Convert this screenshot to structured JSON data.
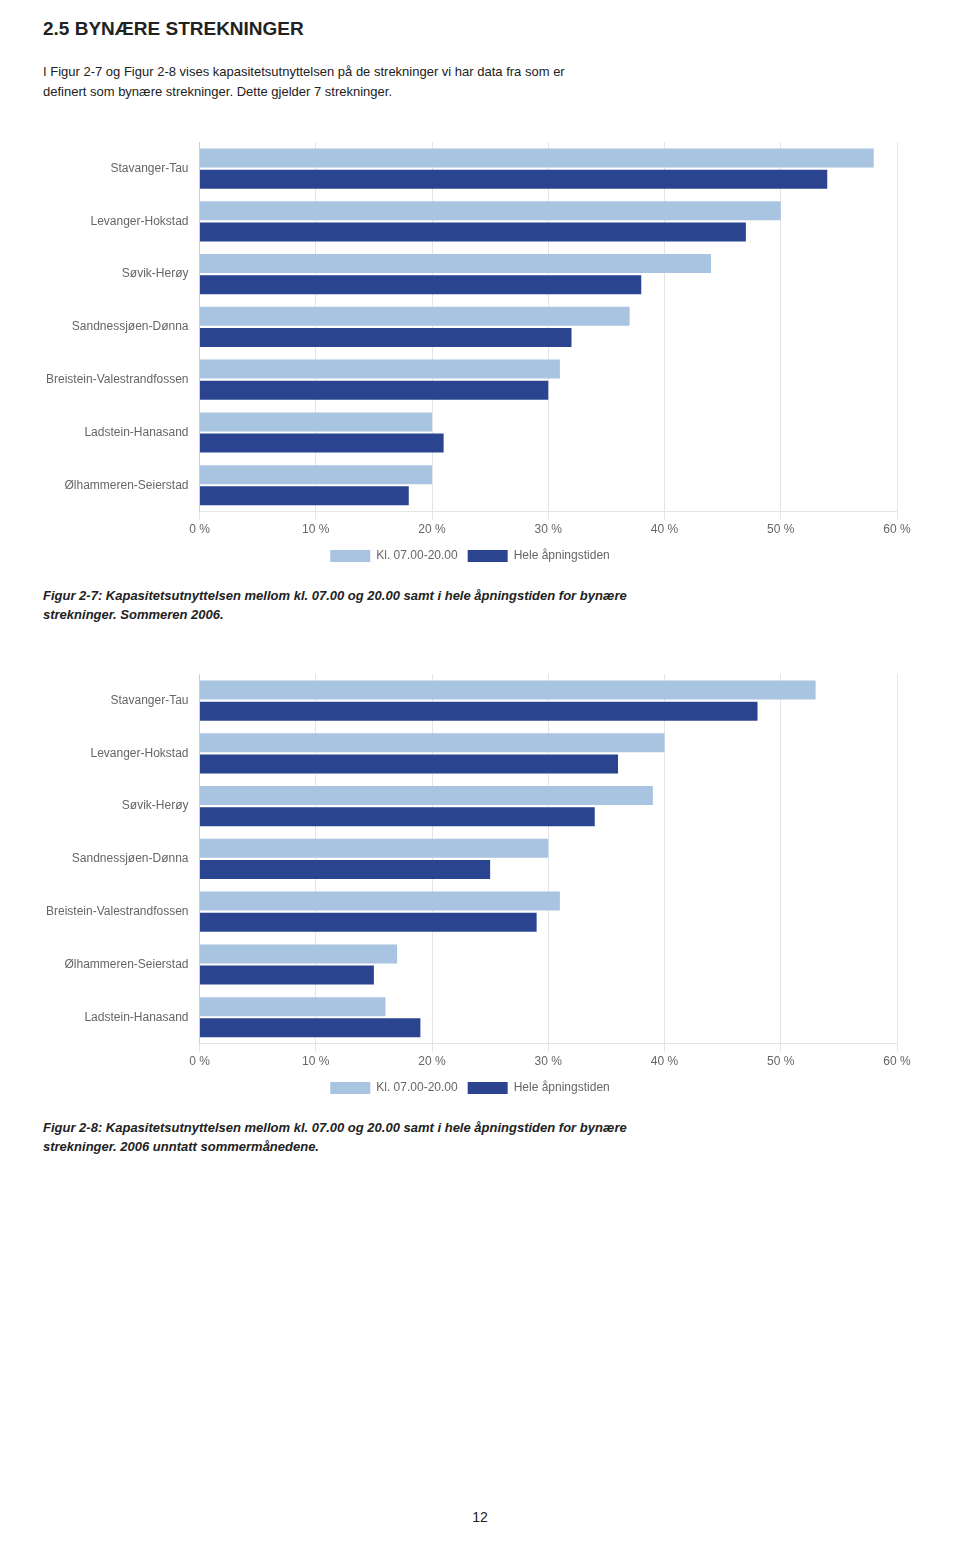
{
  "title": "2.5  BYNÆRE STREKNINGER",
  "subtitle": [
    "I Figur 2-7 og Figur 2-8 vises kapasitetsutnyttelsen på de strekninger vi har data fra som er",
    "definert som bynære strekninger. Dette gjelder 7 strekninger."
  ],
  "annotations": [
    "12"
  ],
  "chart_data": [
    {
      "type": "bar",
      "orientation": "horizontal",
      "title": [
        "Figur 2-7: Kapasitetsutnyttelsen mellom kl. 07.00 og 20.00 samt i hele åpningstiden for bynære",
        "strekninger. Sommeren 2006."
      ],
      "categories": [
        "Stavanger-Tau",
        "Levanger-Hokstad",
        "Søvik-Herøy",
        "Sandnessjøen-Dønna",
        "Breistein-Valestrandfossen",
        "Ladstein-Hanasand",
        "Ølhammeren-Seierstad"
      ],
      "series": [
        {
          "name": "Kl. 07.00-20.00",
          "color": "#a8c4e0",
          "values": [
            58,
            50,
            44,
            37,
            31,
            20,
            20
          ]
        },
        {
          "name": "Hele åpningstiden",
          "color": "#2b4490",
          "values": [
            54,
            47,
            38,
            32,
            30,
            21,
            18
          ]
        }
      ],
      "xlim": [
        0,
        60
      ],
      "xticks": [
        {
          "value": 0,
          "label": "0 %"
        },
        {
          "value": 10,
          "label": "10 %"
        },
        {
          "value": 20,
          "label": "20 %"
        },
        {
          "value": 30,
          "label": "30 %"
        },
        {
          "value": 40,
          "label": "40 %"
        },
        {
          "value": 50,
          "label": "50 %"
        },
        {
          "value": 60,
          "label": "60 %"
        }
      ],
      "grid": true,
      "legend": "bottom"
    },
    {
      "type": "bar",
      "orientation": "horizontal",
      "title": [
        "Figur 2-8: Kapasitetsutnyttelsen mellom kl. 07.00 og 20.00 samt i hele åpningstiden for bynære",
        "strekninger. 2006 unntatt sommermånedene."
      ],
      "categories": [
        "Stavanger-Tau",
        "Levanger-Hokstad",
        "Søvik-Herøy",
        "Sandnessjøen-Dønna",
        "Breistein-Valestrandfossen",
        "Ølhammeren-Seierstad",
        "Ladstein-Hanasand"
      ],
      "series": [
        {
          "name": "Kl. 07.00-20.00",
          "color": "#a8c4e0",
          "values": [
            53,
            40,
            39,
            30,
            31,
            17,
            16
          ]
        },
        {
          "name": "Hele åpningstiden",
          "color": "#2b4490",
          "values": [
            48,
            36,
            34,
            25,
            29,
            15,
            19
          ]
        }
      ],
      "xlim": [
        0,
        60
      ],
      "xticks": [
        {
          "value": 0,
          "label": "0 %"
        },
        {
          "value": 10,
          "label": "10 %"
        },
        {
          "value": 20,
          "label": "20 %"
        },
        {
          "value": 30,
          "label": "30 %"
        },
        {
          "value": 40,
          "label": "40 %"
        },
        {
          "value": 50,
          "label": "50 %"
        },
        {
          "value": 60,
          "label": "60 %"
        }
      ],
      "grid": true,
      "legend": "bottom"
    }
  ]
}
